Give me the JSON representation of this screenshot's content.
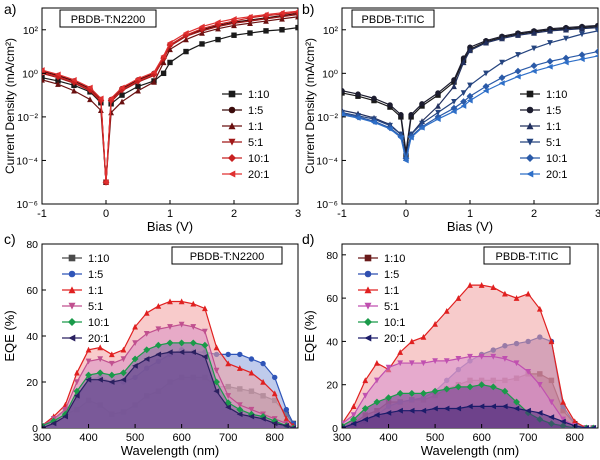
{
  "figure": {
    "panels": [
      "a",
      "b",
      "c",
      "d"
    ]
  },
  "chart_data": [
    {
      "id": "a",
      "panel_label": "a)",
      "type": "line",
      "title": "PBDB-T:N2200",
      "xlabel": "Bias (V)",
      "ylabel": "Current Density (mA/cm²)",
      "xlim": [
        -1,
        3
      ],
      "ylim_log10": [
        -6,
        3
      ],
      "yscale": "log",
      "x_ticks": [
        "-1",
        "0",
        "1",
        "2",
        "3"
      ],
      "y_ticks": [
        "10⁻⁶",
        "10⁻⁴",
        "10⁻²",
        "10⁰",
        "10²"
      ],
      "legend_position": "right",
      "x": [
        -1,
        -0.75,
        -0.5,
        -0.25,
        -0.08,
        0,
        0.08,
        0.25,
        0.5,
        0.75,
        0.9,
        1.0,
        1.25,
        1.5,
        1.75,
        2.0,
        2.25,
        2.5,
        2.75,
        3.0
      ],
      "series": [
        {
          "name": "1:10",
          "color": "#1a1a1a",
          "marker": "square",
          "log10_values": [
            -0.2,
            -0.35,
            -0.55,
            -0.85,
            -1.35,
            -5.0,
            -1.4,
            -1.0,
            -0.6,
            -0.35,
            0.0,
            0.5,
            1.0,
            1.35,
            1.55,
            1.75,
            1.85,
            1.95,
            2.0,
            2.1
          ]
        },
        {
          "name": "1:5",
          "color": "#3a0a0a",
          "marker": "circle",
          "log10_values": [
            0.1,
            -0.1,
            -0.35,
            -0.7,
            -1.2,
            -5.0,
            -1.2,
            -0.7,
            -0.3,
            0.0,
            0.7,
            1.3,
            1.75,
            2.0,
            2.2,
            2.35,
            2.45,
            2.55,
            2.65,
            2.75
          ]
        },
        {
          "name": "1:1",
          "color": "#6a1010",
          "marker": "triangle",
          "log10_values": [
            -0.3,
            -0.5,
            -0.8,
            -1.2,
            -1.7,
            -5.0,
            -1.8,
            -1.3,
            -0.8,
            -0.4,
            0.5,
            1.1,
            1.55,
            1.85,
            2.05,
            2.2,
            2.3,
            2.4,
            2.5,
            2.6
          ]
        },
        {
          "name": "5:1",
          "color": "#a01818",
          "marker": "tri-down",
          "log10_values": [
            0.0,
            -0.2,
            -0.45,
            -0.8,
            -1.3,
            -5.0,
            -1.3,
            -0.8,
            -0.4,
            -0.1,
            0.65,
            1.25,
            1.7,
            1.95,
            2.15,
            2.3,
            2.4,
            2.5,
            2.6,
            2.7
          ]
        },
        {
          "name": "10:1",
          "color": "#c82020",
          "marker": "diamond",
          "log10_values": [
            0.05,
            -0.15,
            -0.4,
            -0.75,
            -1.25,
            -5.0,
            -1.25,
            -0.75,
            -0.35,
            -0.05,
            0.7,
            1.3,
            1.75,
            2.05,
            2.25,
            2.4,
            2.55,
            2.65,
            2.72,
            2.8
          ]
        },
        {
          "name": "20:1",
          "color": "#e03030",
          "marker": "tri-left",
          "log10_values": [
            0.15,
            -0.05,
            -0.3,
            -0.65,
            -1.15,
            -5.0,
            -1.15,
            -0.65,
            -0.25,
            0.05,
            0.8,
            1.4,
            1.85,
            2.15,
            2.35,
            2.5,
            2.6,
            2.7,
            2.78,
            2.85
          ]
        }
      ]
    },
    {
      "id": "b",
      "panel_label": "b)",
      "type": "line",
      "title": "PBDB-T:ITIC",
      "xlabel": "Bias (V)",
      "ylabel": "Current Density (mA/cm²)",
      "xlim": [
        -1,
        3
      ],
      "ylim_log10": [
        -6,
        3
      ],
      "yscale": "log",
      "x_ticks": [
        "-1",
        "0",
        "1",
        "2",
        "3"
      ],
      "y_ticks": [
        "10⁻⁶",
        "10⁻⁴",
        "10⁻²",
        "10⁰",
        "10²"
      ],
      "legend_position": "right",
      "x": [
        -1,
        -0.75,
        -0.5,
        -0.25,
        -0.08,
        0,
        0.08,
        0.25,
        0.5,
        0.75,
        0.9,
        1.0,
        1.25,
        1.5,
        1.75,
        2.0,
        2.25,
        2.5,
        2.75,
        3.0
      ],
      "series": [
        {
          "name": "1:10",
          "color": "#1a1a1a",
          "marker": "square",
          "log10_values": [
            -0.9,
            -1.05,
            -1.25,
            -1.55,
            -2.0,
            -3.8,
            -2.0,
            -1.5,
            -1.0,
            -0.4,
            0.6,
            1.1,
            1.45,
            1.65,
            1.8,
            1.9,
            2.0,
            2.05,
            2.1,
            2.15
          ]
        },
        {
          "name": "1:5",
          "color": "#1c1c2e",
          "marker": "circle",
          "log10_values": [
            -0.8,
            -0.95,
            -1.15,
            -1.45,
            -1.9,
            -3.6,
            -1.9,
            -1.4,
            -0.9,
            -0.3,
            0.7,
            1.2,
            1.5,
            1.7,
            1.85,
            1.95,
            2.05,
            2.1,
            2.15,
            2.2
          ]
        },
        {
          "name": "1:1",
          "color": "#22305e",
          "marker": "triangle",
          "log10_values": [
            -1.7,
            -1.85,
            -2.05,
            -2.35,
            -2.8,
            -3.9,
            -2.8,
            -2.2,
            -1.5,
            -0.6,
            0.5,
            1.05,
            1.4,
            1.6,
            1.75,
            1.85,
            1.95,
            2.0,
            2.05,
            2.1
          ]
        },
        {
          "name": "5:1",
          "color": "#25447f",
          "marker": "tri-down",
          "log10_values": [
            -1.8,
            -1.95,
            -2.1,
            -2.4,
            -2.8,
            -3.8,
            -2.8,
            -2.3,
            -1.8,
            -1.3,
            -0.9,
            -0.55,
            0.0,
            0.5,
            0.85,
            1.15,
            1.4,
            1.6,
            1.8,
            1.95
          ]
        },
        {
          "name": "10:1",
          "color": "#2a5aa8",
          "marker": "diamond",
          "log10_values": [
            -1.85,
            -2.0,
            -2.2,
            -2.5,
            -2.9,
            -3.9,
            -2.9,
            -2.45,
            -2.0,
            -1.6,
            -1.3,
            -1.05,
            -0.6,
            -0.2,
            0.1,
            0.35,
            0.55,
            0.7,
            0.85,
            1.0
          ]
        },
        {
          "name": "20:1",
          "color": "#2e6fc8",
          "marker": "tri-left",
          "log10_values": [
            -1.9,
            -2.05,
            -2.25,
            -2.55,
            -2.95,
            -4.0,
            -2.95,
            -2.5,
            -2.1,
            -1.75,
            -1.5,
            -1.25,
            -0.8,
            -0.45,
            -0.15,
            0.1,
            0.3,
            0.5,
            0.65,
            0.8
          ]
        }
      ]
    },
    {
      "id": "c",
      "panel_label": "c)",
      "type": "area",
      "title": "PBDB-T:N2200",
      "xlabel": "Wavelength (nm)",
      "ylabel": "EQE (%)",
      "xlim": [
        300,
        850
      ],
      "ylim": [
        0,
        80
      ],
      "x_ticks": [
        "300",
        "400",
        "500",
        "600",
        "700",
        "800"
      ],
      "y_ticks": [
        "0",
        "20",
        "40",
        "60",
        "80"
      ],
      "legend_position": "top-left",
      "x": [
        300,
        325,
        350,
        375,
        400,
        425,
        450,
        475,
        500,
        525,
        550,
        575,
        600,
        625,
        650,
        675,
        700,
        725,
        750,
        775,
        800,
        825,
        840
      ],
      "series": [
        {
          "name": "1:10",
          "color": "#4a4a4a",
          "fill": "#6f6f6f",
          "marker": "square",
          "values": [
            0,
            2,
            6,
            8,
            12,
            10,
            6,
            7,
            10,
            14,
            16,
            20,
            22,
            22,
            22,
            18,
            18,
            17,
            16,
            14,
            12,
            6,
            2
          ]
        },
        {
          "name": "1:5",
          "color": "#2f55b8",
          "fill": "#8aa0dd",
          "marker": "circle",
          "values": [
            0,
            3,
            8,
            13,
            21,
            22,
            20,
            20,
            22,
            26,
            29,
            32,
            34,
            33,
            33,
            32,
            32,
            32,
            30,
            28,
            22,
            8,
            2
          ]
        },
        {
          "name": "1:1",
          "color": "#e02020",
          "fill": "#f2a0a0",
          "marker": "triangle",
          "values": [
            1,
            5,
            10,
            24,
            34,
            35,
            32,
            34,
            44,
            50,
            53,
            55,
            55,
            54,
            52,
            35,
            28,
            26,
            24,
            20,
            15,
            4,
            1
          ]
        },
        {
          "name": "5:1",
          "color": "#c0508f",
          "fill": "#d990c4",
          "marker": "tri-down",
          "values": [
            1,
            4,
            8,
            20,
            29,
            30,
            28,
            30,
            37,
            41,
            43,
            44,
            45,
            44,
            42,
            25,
            14,
            10,
            8,
            6,
            4,
            2,
            0
          ]
        },
        {
          "name": "10:1",
          "color": "#1a9a4a",
          "fill": "#7a6a9a",
          "marker": "diamond",
          "values": [
            1,
            3,
            6,
            16,
            23,
            24,
            23,
            24,
            30,
            34,
            36,
            37,
            37,
            37,
            36,
            20,
            11,
            8,
            6,
            5,
            3,
            1,
            0
          ]
        },
        {
          "name": "20:1",
          "color": "#2a2060",
          "fill": "#5a3a8a",
          "marker": "tri-left",
          "values": [
            0,
            2,
            5,
            14,
            21,
            21,
            20,
            21,
            27,
            30,
            32,
            33,
            33,
            33,
            31,
            16,
            9,
            6,
            5,
            4,
            2,
            1,
            0
          ]
        }
      ]
    },
    {
      "id": "d",
      "panel_label": "d)",
      "type": "area",
      "title": "PBDB-T:ITIC",
      "xlabel": "Wavelength (nm)",
      "ylabel": "EQE (%)",
      "xlim": [
        300,
        850
      ],
      "ylim": [
        0,
        85
      ],
      "x_ticks": [
        "300",
        "400",
        "500",
        "600",
        "700",
        "800"
      ],
      "y_ticks": [
        "0",
        "20",
        "40",
        "60",
        "80"
      ],
      "legend_position": "top-left",
      "x": [
        300,
        325,
        350,
        375,
        400,
        425,
        450,
        475,
        500,
        525,
        550,
        575,
        600,
        625,
        650,
        675,
        700,
        725,
        750,
        775,
        800,
        825,
        840
      ],
      "series": [
        {
          "name": "1:10",
          "color": "#6a1a1a",
          "fill": "#8a3a5a",
          "marker": "square",
          "values": [
            0,
            2,
            6,
            8,
            12,
            12,
            13,
            13,
            15,
            18,
            20,
            22,
            22,
            22,
            22,
            23,
            25,
            25,
            22,
            8,
            2,
            0,
            0
          ]
        },
        {
          "name": "1:5",
          "color": "#2f4fb0",
          "fill": "#7a5fb0",
          "marker": "circle",
          "values": [
            0,
            1,
            3,
            6,
            10,
            12,
            13,
            14,
            17,
            22,
            27,
            31,
            34,
            36,
            38,
            39,
            40,
            42,
            40,
            10,
            2,
            0,
            0
          ]
        },
        {
          "name": "1:1",
          "color": "#e02020",
          "fill": "#f0a0a0",
          "marker": "triangle",
          "values": [
            2,
            10,
            22,
            30,
            27,
            35,
            40,
            42,
            48,
            54,
            60,
            66,
            66,
            65,
            62,
            60,
            62,
            55,
            40,
            12,
            3,
            0,
            0
          ]
        },
        {
          "name": "5:1",
          "color": "#c050b0",
          "fill": "#d890d0",
          "marker": "tri-down",
          "values": [
            2,
            6,
            15,
            22,
            28,
            30,
            30,
            30,
            31,
            31,
            32,
            33,
            33,
            33,
            32,
            30,
            26,
            20,
            12,
            4,
            1,
            0,
            0
          ]
        },
        {
          "name": "10:1",
          "color": "#1a9a4a",
          "fill": "#6a3a8a",
          "marker": "diamond",
          "values": [
            1,
            4,
            9,
            12,
            14,
            16,
            16,
            16,
            17,
            18,
            19,
            19,
            20,
            19,
            17,
            12,
            7,
            4,
            2,
            1,
            0,
            0,
            0
          ]
        },
        {
          "name": "20:1",
          "color": "#1c1c6a",
          "fill": "#4a2a7a",
          "marker": "tri-left",
          "values": [
            0,
            2,
            4,
            6,
            7,
            8,
            8,
            8,
            9,
            9,
            9,
            10,
            10,
            10,
            10,
            9,
            8,
            7,
            5,
            3,
            1,
            0,
            0
          ]
        }
      ]
    }
  ]
}
